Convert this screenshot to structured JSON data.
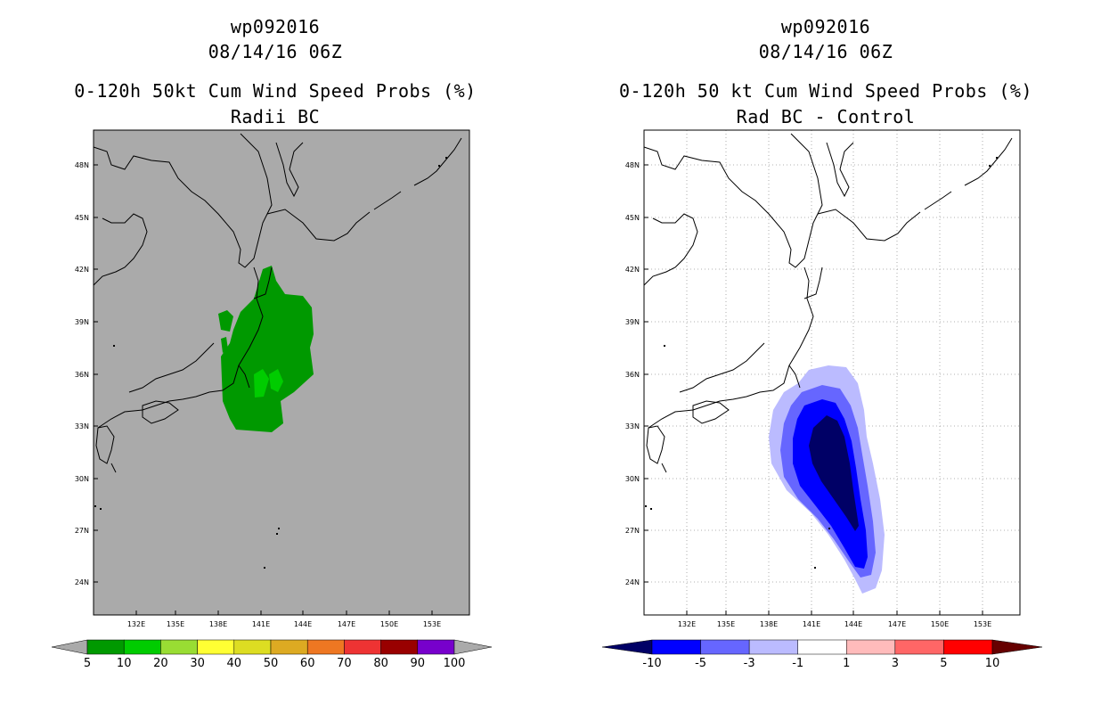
{
  "left": {
    "title_id": "wp092016",
    "title_date": "08/14/16 06Z",
    "title_main": "0-120h 50kt Cum Wind Speed Probs (%)",
    "subtitle": "Radii BC",
    "lat_labels": [
      "48N",
      "45N",
      "42N",
      "39N",
      "36N",
      "33N",
      "30N",
      "27N",
      "24N"
    ],
    "lon_labels": [
      "132E",
      "135E",
      "138E",
      "141E",
      "144E",
      "147E",
      "150E",
      "153E"
    ],
    "colorbar": {
      "labels": [
        "5",
        "10",
        "20",
        "30",
        "40",
        "50",
        "60",
        "70",
        "80",
        "90",
        "100"
      ],
      "colors": [
        "#009900",
        "#00cc00",
        "#99dd33",
        "#ffff33",
        "#dddd22",
        "#ddaa22",
        "#ee7722",
        "#ee3333",
        "#990000",
        "#7700cc"
      ],
      "end_color": "#aaaaaa"
    },
    "background_color": "#aaaaaa"
  },
  "right": {
    "title_id": "wp092016",
    "title_date": "08/14/16 06Z",
    "title_main": "0-120h 50 kt Cum Wind Speed Probs (%)",
    "subtitle": "Rad BC - Control",
    "lat_labels": [
      "48N",
      "45N",
      "42N",
      "39N",
      "36N",
      "33N",
      "30N",
      "27N",
      "24N"
    ],
    "lon_labels": [
      "132E",
      "135E",
      "138E",
      "141E",
      "144E",
      "147E",
      "150E",
      "153E"
    ],
    "colorbar": {
      "labels": [
        "-10",
        "-5",
        "-3",
        "-1",
        "1",
        "3",
        "5",
        "10"
      ],
      "colors": [
        "#0000ff",
        "#6666ff",
        "#bbbbff",
        "#ffffff",
        "#ffbbbb",
        "#ff6666",
        "#ff0000"
      ],
      "left_end_color": "#000066",
      "right_end_color": "#660000"
    },
    "background_color": "#ffffff"
  }
}
